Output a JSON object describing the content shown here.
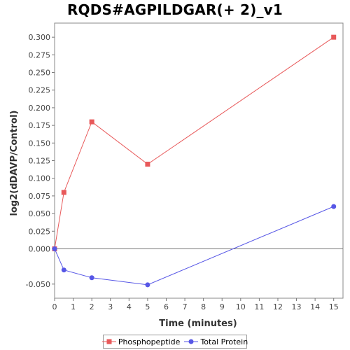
{
  "chart_data": {
    "type": "line",
    "title": "RQDS#AGPILDGAR(+ 2)_v1",
    "xlabel": "Time (minutes)",
    "ylabel": "log2(dDAVP/Control)",
    "xlim": [
      0,
      15.5
    ],
    "ylim": [
      -0.07,
      0.32
    ],
    "xticks": [
      0,
      1,
      2,
      3,
      4,
      5,
      6,
      7,
      8,
      9,
      10,
      11,
      12,
      13,
      14,
      15
    ],
    "yticks": [
      -0.05,
      0,
      0.025,
      0.05,
      0.075,
      0.1,
      0.125,
      0.15,
      0.175,
      0.2,
      0.225,
      0.25,
      0.275,
      0.3
    ],
    "ytick_labels": [
      "-0.050",
      "0.000",
      "0.025",
      "0.050",
      "0.075",
      "0.100",
      "0.125",
      "0.150",
      "0.175",
      "0.200",
      "0.225",
      "0.250",
      "0.275",
      "0.300"
    ],
    "zero_line": true,
    "grid": false,
    "legend_position": "bottom",
    "series": [
      {
        "name": "Phosphopeptide",
        "color": "#e8595a",
        "marker": "square",
        "x": [
          0,
          0.5,
          2,
          5,
          15
        ],
        "y": [
          0.0,
          0.08,
          0.18,
          0.12,
          0.3
        ]
      },
      {
        "name": "Total Protein",
        "color": "#5757e6",
        "marker": "circle",
        "x": [
          0,
          0.5,
          2,
          5,
          15
        ],
        "y": [
          0.0,
          -0.03,
          -0.041,
          -0.051,
          0.06
        ]
      }
    ]
  }
}
